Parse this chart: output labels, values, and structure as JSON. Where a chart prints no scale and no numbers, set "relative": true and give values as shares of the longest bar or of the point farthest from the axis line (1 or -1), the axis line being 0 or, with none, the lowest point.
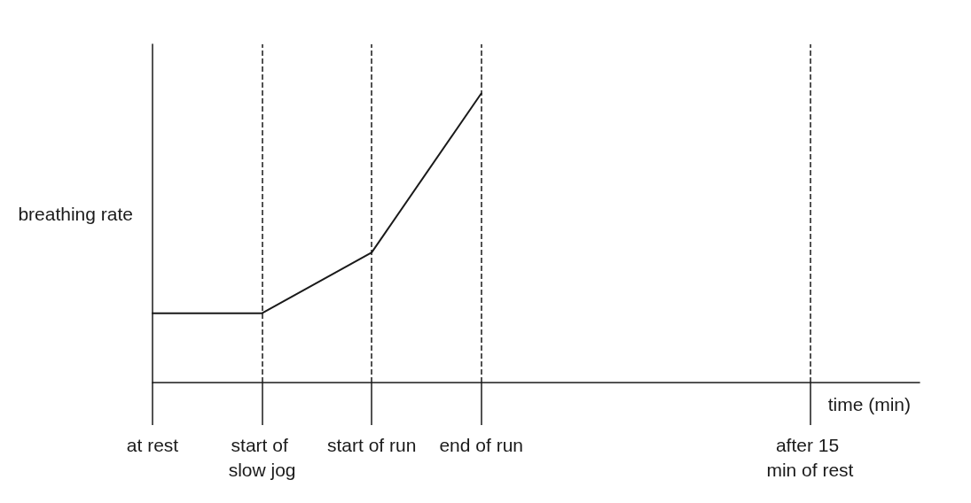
{
  "chart_data": {
    "type": "line",
    "relative": true,
    "ylabel": "breathing rate",
    "xlabel": "time (min)",
    "categories": [
      "at rest",
      "start of slow jog",
      "start of run",
      "end of run",
      null,
      null,
      "after 15 min of rest",
      null
    ],
    "series": [
      {
        "color": "#1a1a1a",
        "values": [
          0.24,
          0.24,
          0.45,
          1,
          null,
          null,
          null,
          null
        ]
      }
    ],
    "ref_lines": [
      {
        "axis": "x",
        "value": "start of slow jog",
        "line_style": "dashed",
        "color": "#1a1a1a"
      },
      {
        "axis": "x",
        "value": "start of run",
        "line_style": "dashed",
        "color": "#1a1a1a"
      },
      {
        "axis": "x",
        "value": "end of run",
        "line_style": "dashed",
        "color": "#1a1a1a"
      },
      {
        "axis": "x",
        "value": "after 15 min of rest",
        "line_style": "dashed",
        "color": "#1a1a1a"
      }
    ],
    "marker": "none",
    "line_style": "solid",
    "grid": false
  }
}
